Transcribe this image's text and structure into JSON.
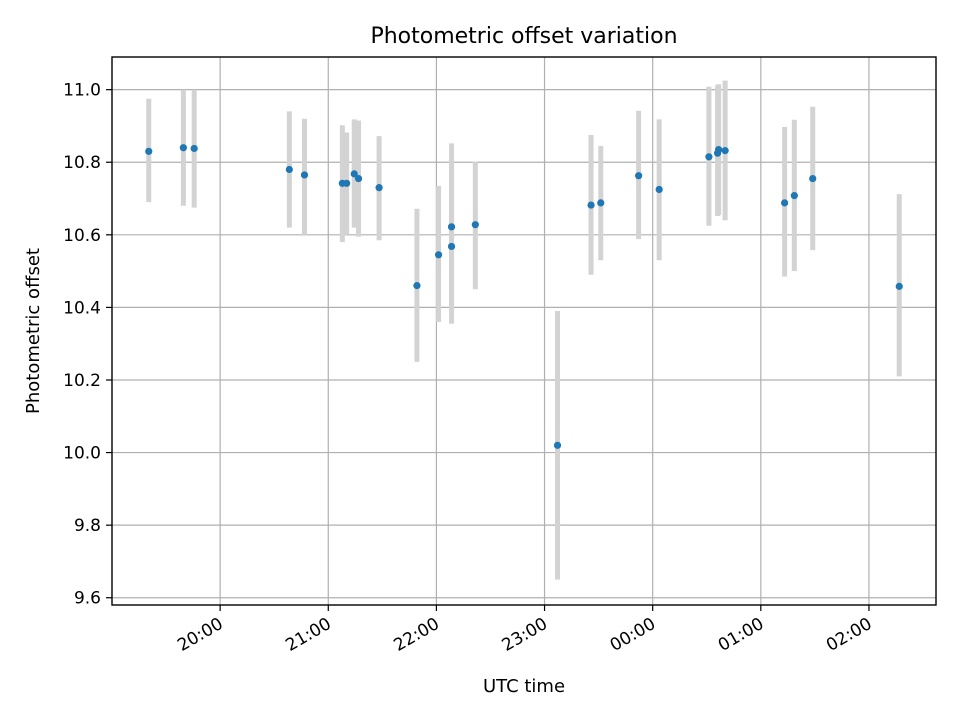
{
  "chart_data": {
    "type": "scatter",
    "title": "Photometric offset variation",
    "xlabel": "UTC time",
    "ylabel": "Photometric offset",
    "grid": true,
    "x_tick_labels": [
      "20:00",
      "21:00",
      "22:00",
      "23:00",
      "00:00",
      "01:00",
      "02:00"
    ],
    "y_tick_labels": [
      "9.6",
      "9.8",
      "10.0",
      "10.2",
      "10.4",
      "10.6",
      "10.8",
      "11.0"
    ],
    "x_tick_hours": [
      20,
      21,
      22,
      23,
      24,
      25,
      26
    ],
    "y_ticks": [
      9.6,
      9.8,
      10.0,
      10.2,
      10.4,
      10.6,
      10.8,
      11.0
    ],
    "xlim": [
      19.0,
      26.62
    ],
    "ylim": [
      9.58,
      11.09
    ],
    "colors": {
      "marker": "#1f77b4",
      "errorbar": "#d3d3d3"
    },
    "points": [
      {
        "time": "19:20",
        "hours": 19.34,
        "y": 10.83,
        "yerr_low": 10.69,
        "yerr_high": 10.975
      },
      {
        "time": "19:40",
        "hours": 19.66,
        "y": 10.84,
        "yerr_low": 10.68,
        "yerr_high": 11.0
      },
      {
        "time": "19:46",
        "hours": 19.76,
        "y": 10.838,
        "yerr_low": 10.675,
        "yerr_high": 11.0
      },
      {
        "time": "20:38",
        "hours": 20.64,
        "y": 10.78,
        "yerr_low": 10.62,
        "yerr_high": 10.94
      },
      {
        "time": "20:47",
        "hours": 20.78,
        "y": 10.765,
        "yerr_low": 10.6,
        "yerr_high": 10.92
      },
      {
        "time": "21:08",
        "hours": 21.13,
        "y": 10.742,
        "yerr_low": 10.58,
        "yerr_high": 10.902
      },
      {
        "time": "21:10",
        "hours": 21.17,
        "y": 10.742,
        "yerr_low": 10.6,
        "yerr_high": 10.882
      },
      {
        "time": "21:14",
        "hours": 21.24,
        "y": 10.768,
        "yerr_low": 10.62,
        "yerr_high": 10.918
      },
      {
        "time": "21:16",
        "hours": 21.28,
        "y": 10.755,
        "yerr_low": 10.595,
        "yerr_high": 10.915
      },
      {
        "time": "21:28",
        "hours": 21.47,
        "y": 10.73,
        "yerr_low": 10.585,
        "yerr_high": 10.872
      },
      {
        "time": "21:49",
        "hours": 21.82,
        "y": 10.46,
        "yerr_low": 10.25,
        "yerr_high": 10.672
      },
      {
        "time": "22:01",
        "hours": 22.02,
        "y": 10.545,
        "yerr_low": 10.36,
        "yerr_high": 10.735
      },
      {
        "time": "22:08",
        "hours": 22.14,
        "y": 10.622,
        "yerr_low": 10.39,
        "yerr_high": 10.852
      },
      {
        "time": "22:08",
        "hours": 22.14,
        "y": 10.568,
        "yerr_low": 10.355,
        "yerr_high": 10.782
      },
      {
        "time": "22:22",
        "hours": 22.36,
        "y": 10.628,
        "yerr_low": 10.45,
        "yerr_high": 10.802
      },
      {
        "time": "23:07",
        "hours": 23.12,
        "y": 10.02,
        "yerr_low": 9.65,
        "yerr_high": 10.39
      },
      {
        "time": "23:25",
        "hours": 23.43,
        "y": 10.682,
        "yerr_low": 10.49,
        "yerr_high": 10.875
      },
      {
        "time": "23:31",
        "hours": 23.52,
        "y": 10.688,
        "yerr_low": 10.53,
        "yerr_high": 10.845
      },
      {
        "time": "23:52",
        "hours": 23.87,
        "y": 10.763,
        "yerr_low": 10.588,
        "yerr_high": 10.942
      },
      {
        "time": "00:04",
        "hours": 24.06,
        "y": 10.725,
        "yerr_low": 10.53,
        "yerr_high": 10.918
      },
      {
        "time": "00:32",
        "hours": 24.52,
        "y": 10.815,
        "yerr_low": 10.625,
        "yerr_high": 11.008
      },
      {
        "time": "00:36",
        "hours": 24.6,
        "y": 10.825,
        "yerr_low": 10.652,
        "yerr_high": 11.012
      },
      {
        "time": "00:37",
        "hours": 24.61,
        "y": 10.835,
        "yerr_low": 10.655,
        "yerr_high": 11.015
      },
      {
        "time": "00:40",
        "hours": 24.67,
        "y": 10.832,
        "yerr_low": 10.64,
        "yerr_high": 11.025
      },
      {
        "time": "01:13",
        "hours": 25.22,
        "y": 10.688,
        "yerr_low": 10.485,
        "yerr_high": 10.897
      },
      {
        "time": "01:18",
        "hours": 25.31,
        "y": 10.708,
        "yerr_low": 10.5,
        "yerr_high": 10.917
      },
      {
        "time": "01:29",
        "hours": 25.48,
        "y": 10.755,
        "yerr_low": 10.558,
        "yerr_high": 10.953
      },
      {
        "time": "02:16",
        "hours": 26.28,
        "y": 10.458,
        "yerr_low": 10.21,
        "yerr_high": 10.712
      }
    ]
  }
}
